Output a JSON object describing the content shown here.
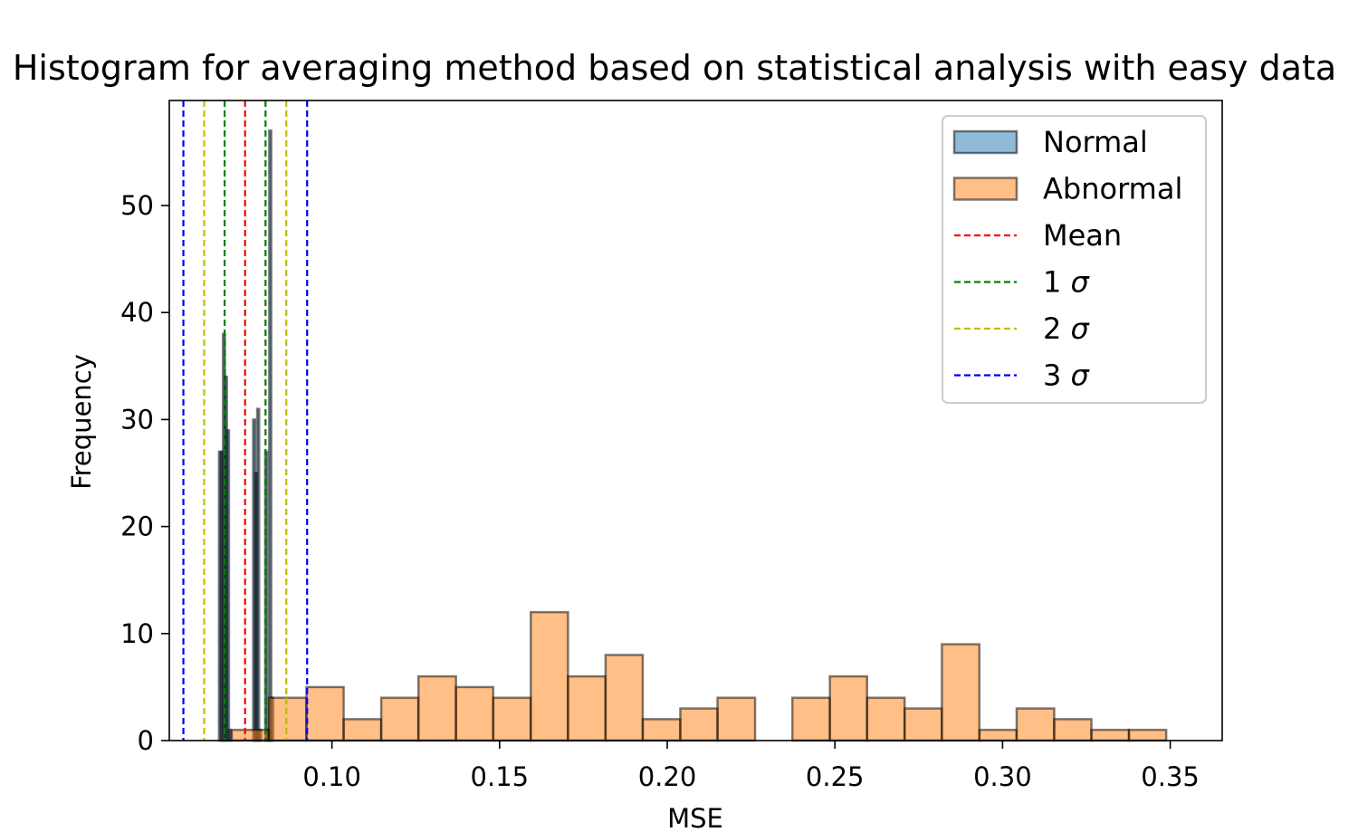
{
  "chart_data": {
    "type": "bar",
    "title": "Histogram for averaging method based on statistical analysis with easy data",
    "xlabel": "MSE",
    "ylabel": "Frequency",
    "xlim": [
      0.0515,
      0.3655
    ],
    "ylim": [
      0,
      60
    ],
    "xticks": [
      "0.10",
      "0.15",
      "0.20",
      "0.25",
      "0.30",
      "0.35"
    ],
    "xtick_values": [
      0.1,
      0.15,
      0.2,
      0.25,
      0.3,
      0.35
    ],
    "yticks": [
      "0",
      "10",
      "20",
      "30",
      "40",
      "50"
    ],
    "ytick_values": [
      0,
      10,
      20,
      30,
      40,
      50
    ],
    "legend_position": "upper right",
    "colors": {
      "normal": "#1f77b4",
      "abnormal": "#ff7f0e",
      "mean": "#ff0000",
      "sigma1": "#008000",
      "sigma2": "#bfbf00",
      "sigma3": "#0000ff",
      "edge": "#000000"
    },
    "series": [
      {
        "name": "Normal",
        "bin_edges": [
          0.0663,
          0.0669,
          0.0675,
          0.0681,
          0.0687,
          0.0693,
          0.0699,
          0.0705,
          0.0711,
          0.0717,
          0.0723,
          0.0729,
          0.0735,
          0.0741,
          0.0747,
          0.0753,
          0.0759,
          0.0765,
          0.0771,
          0.0777,
          0.0783,
          0.0789,
          0.0795,
          0.0801,
          0.0807,
          0.0813,
          0.0819,
          0.0825
        ],
        "counts": [
          27,
          27,
          38,
          34,
          29,
          1,
          0,
          0,
          0,
          0,
          0,
          0,
          0,
          0,
          0,
          0,
          0,
          30,
          25,
          31,
          1,
          0,
          0,
          27,
          1,
          57,
          4
        ]
      },
      {
        "name": "Abnormal",
        "bin_edges": [
          0.0701,
          0.0812,
          0.0924,
          0.1035,
          0.1147,
          0.1258,
          0.137,
          0.1481,
          0.1593,
          0.1704,
          0.1816,
          0.1927,
          0.2039,
          0.215,
          0.2262,
          0.2373,
          0.2485,
          0.2596,
          0.2708,
          0.2819,
          0.2931,
          0.3042,
          0.3154,
          0.3265,
          0.3377,
          0.3488
        ],
        "counts": [
          1,
          4,
          5,
          2,
          4,
          6,
          5,
          4,
          12,
          6,
          8,
          2,
          3,
          4,
          0,
          4,
          6,
          4,
          3,
          9,
          1,
          3,
          2,
          1,
          1
        ]
      }
    ],
    "vlines": [
      {
        "name": "Mean",
        "x": 0.0741,
        "color": "#ff0000"
      },
      {
        "name": "1 σ",
        "x": 0.068,
        "color": "#008000"
      },
      {
        "name": "1 σ",
        "x": 0.0802,
        "color": "#008000"
      },
      {
        "name": "2 σ",
        "x": 0.0619,
        "color": "#bfbf00"
      },
      {
        "name": "2 σ",
        "x": 0.0864,
        "color": "#bfbf00"
      },
      {
        "name": "3 σ",
        "x": 0.0557,
        "color": "#0000ff"
      },
      {
        "name": "3 σ",
        "x": 0.0926,
        "color": "#0000ff"
      }
    ],
    "legend": [
      {
        "label_num": "",
        "label": "Normal",
        "kind": "patch",
        "color": "#1f77b4"
      },
      {
        "label_num": "",
        "label": "Abnormal",
        "kind": "patch",
        "color": "#ff7f0e"
      },
      {
        "label_num": "",
        "label": "Mean",
        "kind": "line",
        "color": "#ff0000"
      },
      {
        "label_num": "1",
        "label": "σ",
        "kind": "line",
        "color": "#008000"
      },
      {
        "label_num": "2",
        "label": "σ",
        "kind": "line",
        "color": "#bfbf00"
      },
      {
        "label_num": "3",
        "label": "σ",
        "kind": "line",
        "color": "#0000ff"
      }
    ]
  }
}
